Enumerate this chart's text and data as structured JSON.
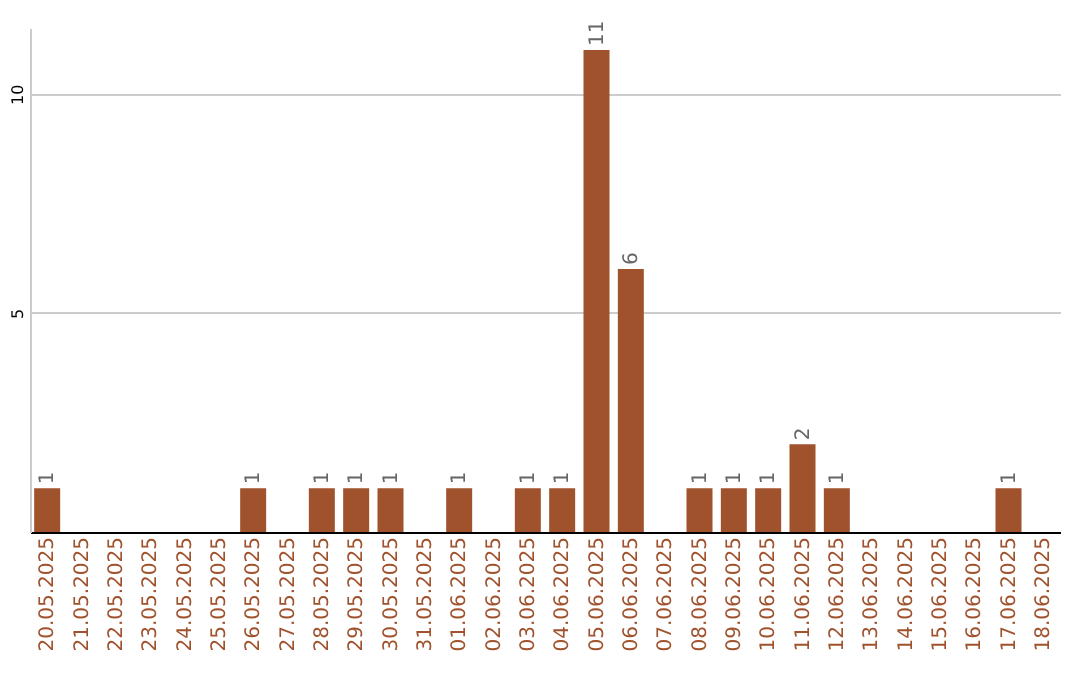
{
  "chart_data": {
    "type": "bar",
    "categories": [
      "20.05.2025",
      "21.05.2025",
      "22.05.2025",
      "23.05.2025",
      "24.05.2025",
      "25.05.2025",
      "26.05.2025",
      "27.05.2025",
      "28.05.2025",
      "29.05.2025",
      "30.05.2025",
      "31.05.2025",
      "01.06.2025",
      "02.06.2025",
      "03.06.2025",
      "04.06.2025",
      "05.06.2025",
      "06.06.2025",
      "07.06.2025",
      "08.06.2025",
      "09.06.2025",
      "10.06.2025",
      "11.06.2025",
      "12.06.2025",
      "13.06.2025",
      "14.06.2025",
      "15.06.2025",
      "16.06.2025",
      "17.06.2025",
      "18.06.2025"
    ],
    "values": [
      1,
      0,
      0,
      0,
      0,
      0,
      1,
      0,
      1,
      1,
      1,
      0,
      1,
      0,
      1,
      1,
      11,
      6,
      0,
      1,
      1,
      1,
      2,
      1,
      0,
      0,
      0,
      0,
      1,
      0
    ],
    "value_labels": [
      "1",
      null,
      null,
      null,
      null,
      null,
      "1",
      null,
      "1",
      "1",
      "1",
      null,
      "1",
      null,
      "1",
      "1",
      "11",
      "6",
      null,
      "1",
      "1",
      "1",
      "2",
      "1",
      null,
      null,
      null,
      null,
      "1",
      null
    ],
    "color": "#a0522d",
    "ylim": [
      0,
      11.5
    ],
    "yticks": [
      5,
      10
    ],
    "grid": "y"
  }
}
